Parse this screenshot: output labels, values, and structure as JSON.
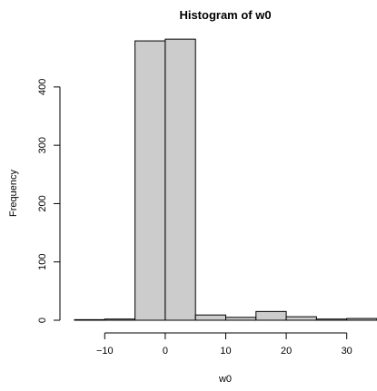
{
  "chart_data": {
    "type": "bar",
    "title": "Histogram of w0",
    "xlabel": "w0",
    "ylabel": "Frequency",
    "bin_edges": [
      -15,
      -10,
      -5,
      0,
      5,
      10,
      15,
      20,
      25,
      30,
      35
    ],
    "values": [
      1,
      2,
      479,
      482,
      9,
      5,
      15,
      6,
      2,
      3
    ],
    "xlim": [
      -15,
      35
    ],
    "ylim": [
      0,
      490
    ],
    "x_ticks": [
      -10,
      0,
      10,
      20,
      30
    ],
    "y_ticks": [
      0,
      100,
      200,
      300,
      400
    ],
    "x_tick_labels": [
      "−10",
      "0",
      "10",
      "20",
      "30"
    ],
    "y_tick_labels": [
      "0",
      "100",
      "200",
      "300",
      "400"
    ],
    "bar_fill": "#cccccc",
    "bar_stroke": "#000000",
    "grid": false
  }
}
